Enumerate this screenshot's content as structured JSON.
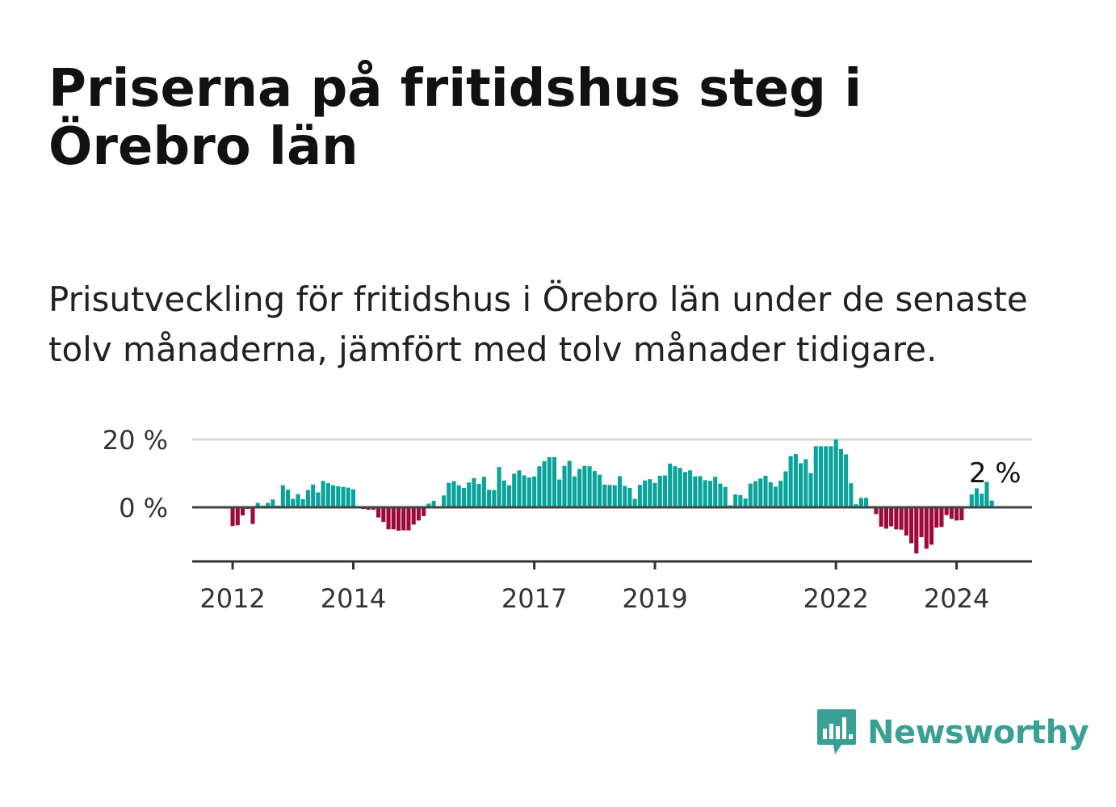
{
  "title": "Priserna på fritidshus steg i Örebro län",
  "subtitle": "Prisutveckling för fritidshus i Örebro län under de senaste tolv månaderna, jämfört med tolv månader tidigare.",
  "brand": {
    "name": "Newsworthy",
    "icon": "chat-bubble-chart-icon",
    "color": "#3aa096"
  },
  "colors": {
    "positive": "#0aa39a",
    "negative": "#9b0a3a",
    "gridline": "#d9d9d9",
    "zero_line": "#444444",
    "axis": "#333333"
  },
  "chart_data": {
    "type": "bar",
    "ylabel": "",
    "xlabel": "",
    "ylim": [
      -15,
      22
    ],
    "y_ticks": [
      {
        "value": 0,
        "label": "0 %"
      },
      {
        "value": 20,
        "label": "20 %"
      }
    ],
    "x_ticks": [
      {
        "value": 2012,
        "label": "2012"
      },
      {
        "value": 2014,
        "label": "2014"
      },
      {
        "value": 2017,
        "label": "2017"
      },
      {
        "value": 2019,
        "label": "2019"
      },
      {
        "value": 2022,
        "label": "2022"
      },
      {
        "value": 2024,
        "label": "2024"
      }
    ],
    "x_range": [
      2011.33,
      2025.25
    ],
    "start_x": 2012.0,
    "step": 0.0833333,
    "last_value_label": "2 %",
    "values": [
      -5.5,
      -5.3,
      -2.4,
      -0.5,
      -4.9,
      1.3,
      0.5,
      1.3,
      2.3,
      0.5,
      6.5,
      5.2,
      2.5,
      3.9,
      2.4,
      5.1,
      6.7,
      4.4,
      7.8,
      7.1,
      6.5,
      6.2,
      6.0,
      5.8,
      5.3,
      0.4,
      -0.5,
      -0.7,
      -0.7,
      -3.0,
      -4.3,
      -6.5,
      -6.5,
      -6.9,
      -6.8,
      -6.8,
      -5.1,
      -3.9,
      -2.6,
      1.1,
      1.9,
      0.1,
      3.5,
      7.2,
      7.7,
      6.5,
      5.7,
      7.3,
      8.6,
      6.9,
      9.0,
      5.2,
      5.1,
      11.9,
      7.9,
      6.5,
      9.9,
      10.9,
      9.4,
      8.8,
      9.1,
      12.1,
      13.6,
      14.8,
      14.8,
      8.2,
      12.2,
      13.7,
      9.1,
      11.3,
      12.2,
      12.1,
      10.7,
      9.6,
      6.7,
      6.6,
      6.5,
      9.2,
      6.3,
      5.7,
      2.5,
      6.6,
      7.9,
      8.3,
      7.2,
      9.3,
      9.4,
      12.9,
      12.1,
      11.6,
      10.4,
      10.9,
      9.1,
      9.2,
      8.0,
      7.8,
      9.0,
      7.0,
      6.0,
      0.6,
      3.8,
      3.6,
      2.6,
      7.0,
      7.7,
      8.5,
      9.3,
      7.4,
      6.1,
      7.8,
      10.6,
      15.1,
      15.7,
      13.0,
      14.2,
      10.1,
      18.0,
      18.0,
      18.0,
      18.0,
      20.0,
      17.2,
      15.6,
      7.1,
      0.9,
      2.8,
      2.8,
      0.0,
      -2.0,
      -5.7,
      -6.3,
      -5.6,
      -6.5,
      -6.6,
      -8.3,
      -10.6,
      -13.6,
      -8.8,
      -12.2,
      -11.0,
      -6.0,
      -5.8,
      -2.3,
      -3.4,
      -3.9,
      -3.8,
      -0.1,
      3.8,
      5.6,
      4.0,
      7.5,
      2.0
    ]
  }
}
